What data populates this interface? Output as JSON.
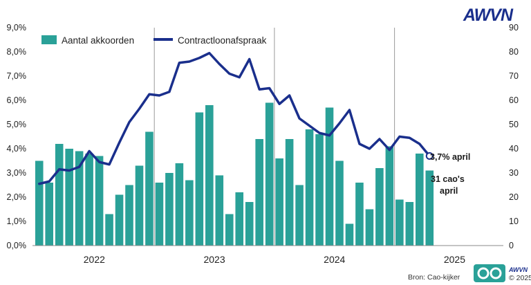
{
  "brand": {
    "logo_text": "AWVN",
    "badge_text": "AWVN",
    "badge_copyright": "© 2025"
  },
  "source": "Bron: Cao-kijker",
  "chart_data": {
    "type": "bar+line",
    "title": "",
    "x_categories_years": [
      "2022",
      "2023",
      "2024",
      "2025"
    ],
    "months_start": "2022-01",
    "y_left": {
      "label": "",
      "min": 0,
      "max": 9.0,
      "step": 1.0,
      "ticks": [
        "0,0%",
        "1,0%",
        "2,0%",
        "3,0%",
        "4,0%",
        "5,0%",
        "6,0%",
        "7,0%",
        "8,0%",
        "9,0%"
      ]
    },
    "y_right": {
      "label": "",
      "min": 0,
      "max": 90,
      "step": 10,
      "ticks": [
        "0",
        "10",
        "20",
        "30",
        "40",
        "50",
        "60",
        "70",
        "80",
        "90"
      ]
    },
    "grid": "vertical lines at year boundaries",
    "legend": {
      "placement": "top-left",
      "items": [
        "Aantal akkoorden",
        "Contractloonafspraak"
      ]
    },
    "colors": {
      "bars": "#2aa198",
      "line": "#1a2f8c"
    },
    "series": [
      {
        "name": "Aantal akkoorden",
        "type": "bar",
        "axis": "right",
        "values": [
          35,
          26,
          42,
          40,
          39,
          38,
          37,
          13,
          21,
          25,
          33,
          47,
          26,
          30,
          34,
          27,
          55,
          58,
          29,
          13,
          22,
          18,
          44,
          59,
          36,
          44,
          25,
          48,
          46,
          57,
          35,
          9,
          26,
          15,
          32,
          41,
          19,
          18,
          38,
          31
        ]
      },
      {
        "name": "Contractloonafspraak",
        "type": "line",
        "axis": "left",
        "values": [
          2.55,
          2.65,
          3.15,
          3.1,
          3.25,
          3.9,
          3.45,
          3.35,
          4.25,
          5.1,
          5.65,
          6.25,
          6.2,
          6.35,
          7.55,
          7.6,
          7.75,
          7.95,
          7.5,
          7.1,
          6.95,
          7.7,
          6.45,
          6.5,
          5.85,
          6.2,
          5.25,
          4.95,
          4.65,
          4.55,
          5.05,
          5.6,
          4.2,
          4.0,
          4.4,
          3.95,
          4.5,
          4.45,
          4.2,
          3.7
        ]
      }
    ],
    "annotations": [
      {
        "text": "3,7% april"
      },
      {
        "lines": [
          "31 cao's",
          "april"
        ]
      }
    ]
  }
}
